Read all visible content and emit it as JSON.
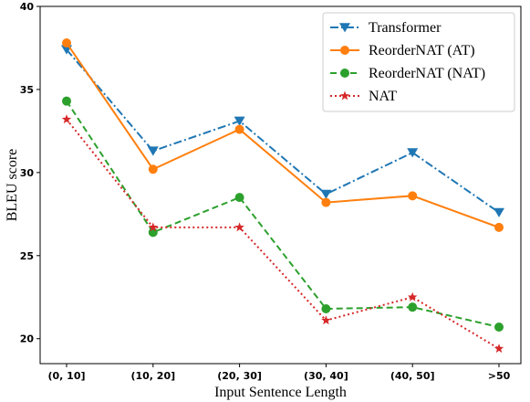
{
  "chart_data": {
    "type": "line",
    "title": "",
    "xlabel": "Input Sentence Length",
    "ylabel": "BLEU score",
    "categories": [
      "(0, 10]",
      "(10, 20]",
      "(20, 30]",
      "(30, 40]",
      "(40, 50]",
      ">50"
    ],
    "ylim": [
      18.5,
      40
    ],
    "yticks": [
      20,
      25,
      30,
      35,
      40
    ],
    "grid": false,
    "legend_position": "top-right",
    "series": [
      {
        "name": "Transformer",
        "values": [
          37.4,
          31.3,
          33.1,
          28.7,
          31.2,
          27.6
        ],
        "color": "#1f77b4",
        "marker": "triangle-down",
        "line_style": "dash-dot"
      },
      {
        "name": "ReorderNAT (AT)",
        "values": [
          37.8,
          30.2,
          32.6,
          28.2,
          28.6,
          26.7
        ],
        "color": "#ff7f0e",
        "marker": "circle",
        "line_style": "solid"
      },
      {
        "name": "ReorderNAT (NAT)",
        "values": [
          34.3,
          26.4,
          28.5,
          21.8,
          21.9,
          20.7
        ],
        "color": "#2ca02c",
        "marker": "circle",
        "line_style": "dashed"
      },
      {
        "name": "NAT",
        "values": [
          33.2,
          26.7,
          26.7,
          21.1,
          22.5,
          19.4
        ],
        "color": "#d62728",
        "marker": "star",
        "line_style": "dotted"
      }
    ]
  }
}
